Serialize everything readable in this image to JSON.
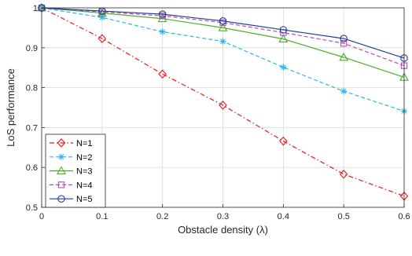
{
  "chart_data": {
    "type": "line",
    "xlabel": "Obstacle density (λ)",
    "ylabel": "LoS performance",
    "xlim": [
      0,
      0.6
    ],
    "ylim": [
      0.5,
      1.0
    ],
    "xticks": [
      0,
      0.1,
      0.2,
      0.3,
      0.4,
      0.5,
      0.6
    ],
    "xtick_labels": [
      "0",
      "0.1",
      "0.2",
      "0.3",
      "0.4",
      "0.5",
      "0.6"
    ],
    "yticks": [
      0.5,
      0.6,
      0.7,
      0.8,
      0.9,
      1.0
    ],
    "ytick_labels": [
      "0.5",
      "0.6",
      "0.7",
      "0.8",
      "0.9",
      "1"
    ],
    "grid": true,
    "legend_position": "bottom-left",
    "x": [
      0,
      0.1,
      0.2,
      0.3,
      0.4,
      0.5,
      0.6
    ],
    "series": [
      {
        "name": "N=1",
        "values": [
          1.0,
          0.923,
          0.834,
          0.756,
          0.666,
          0.583,
          0.528
        ],
        "color": "#e41a1c",
        "marker": "diamond",
        "dash": "dashdot"
      },
      {
        "name": "N=2",
        "values": [
          1.0,
          0.976,
          0.94,
          0.916,
          0.851,
          0.791,
          0.741
        ],
        "color": "#2bb5ec",
        "marker": "asterisk",
        "dash": "dashed"
      },
      {
        "name": "N=3",
        "values": [
          1.0,
          0.987,
          0.973,
          0.95,
          0.922,
          0.876,
          0.826
        ],
        "color": "#4caf2a",
        "marker": "triangle",
        "dash": "solid"
      },
      {
        "name": "N=4",
        "values": [
          1.0,
          0.99,
          0.98,
          0.963,
          0.938,
          0.911,
          0.855
        ],
        "color": "#c047b6",
        "marker": "square",
        "dash": "dashed"
      },
      {
        "name": "N=5",
        "values": [
          1.0,
          0.992,
          0.984,
          0.967,
          0.945,
          0.923,
          0.874
        ],
        "color": "#1f3f99",
        "marker": "circle",
        "dash": "solid"
      }
    ]
  }
}
